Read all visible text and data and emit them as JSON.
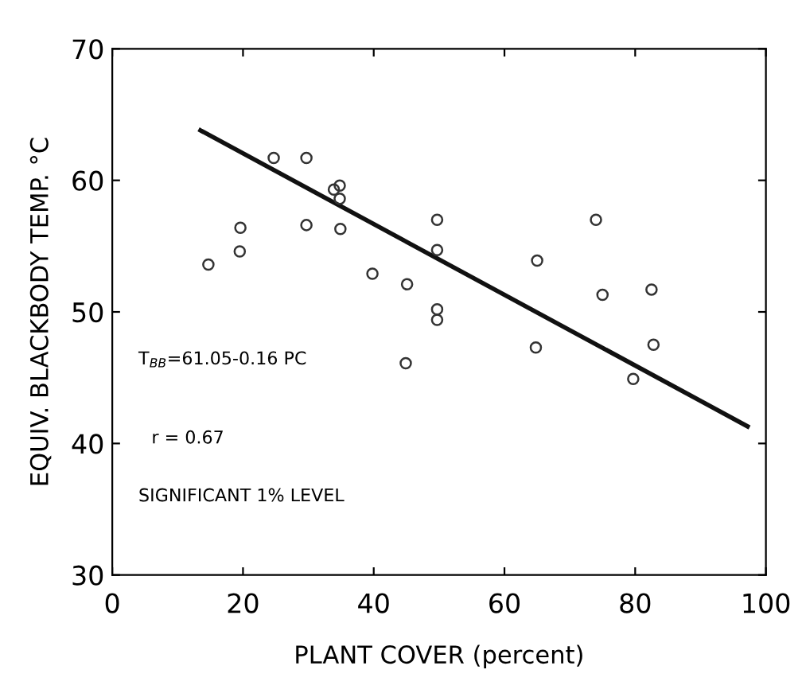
{
  "chart_data": {
    "type": "scatter",
    "xlabel": "PLANT COVER (percent)",
    "ylabel": "EQUIV. BLACKBODY TEMP. °C",
    "xlim": [
      0,
      100
    ],
    "ylim": [
      30,
      70
    ],
    "xticks": [
      0,
      20,
      40,
      60,
      80,
      100
    ],
    "yticks": [
      30,
      40,
      50,
      60,
      70
    ],
    "grid": false,
    "legend": false,
    "series": [
      {
        "marker": "circle",
        "color": "#333333",
        "x": [
          14.7,
          19.6,
          19.5,
          24.7,
          29.7,
          29.7,
          33.9,
          34.8,
          34.8,
          34.9,
          39.8,
          45.1,
          44.9,
          49.7,
          49.7,
          49.7,
          49.7,
          65.0,
          64.8,
          74.0,
          75.0,
          82.5,
          82.8,
          79.7
        ],
        "values": [
          53.6,
          56.4,
          54.6,
          61.7,
          61.7,
          56.6,
          59.3,
          59.6,
          58.6,
          56.3,
          52.9,
          52.1,
          46.1,
          57.0,
          54.7,
          50.2,
          49.4,
          53.9,
          47.3,
          57.0,
          51.3,
          51.7,
          47.5,
          44.9
        ]
      },
      {
        "type": "line",
        "marker": "none",
        "line_style": "solid",
        "color": "#111111",
        "x": [
          13.5,
          97.2
        ],
        "values": [
          63.8,
          41.3
        ]
      }
    ],
    "annotations": [
      {
        "text": "T$_{BB}$=61.05-0.16 PC"
      },
      {
        "text": "r = 0.67"
      },
      {
        "text": "SIGNIFICANT 1% LEVEL"
      }
    ]
  }
}
